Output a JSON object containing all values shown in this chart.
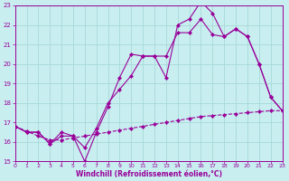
{
  "xlabel": "Windchill (Refroidissement éolien,°C)",
  "bg_color": "#c8eef0",
  "line_color": "#990099",
  "grid_color": "#a8d8d8",
  "xmin": 0,
  "xmax": 23,
  "ymin": 15,
  "ymax": 23,
  "x_ticks": [
    0,
    1,
    2,
    3,
    4,
    5,
    6,
    7,
    8,
    9,
    10,
    11,
    12,
    13,
    14,
    15,
    16,
    17,
    18,
    19,
    20,
    21,
    22,
    23
  ],
  "y_ticks": [
    15,
    16,
    17,
    18,
    19,
    20,
    21,
    22,
    23
  ],
  "line1_x": [
    0,
    1,
    2,
    3,
    4,
    5,
    6,
    7,
    8,
    9,
    10,
    11,
    12,
    13,
    14,
    15,
    16,
    17,
    18,
    19,
    20,
    21,
    22,
    23
  ],
  "line1_y": [
    16.8,
    16.5,
    16.5,
    15.9,
    16.5,
    16.3,
    15.0,
    16.5,
    17.8,
    19.3,
    20.5,
    20.4,
    20.4,
    19.3,
    22.0,
    22.3,
    23.2,
    22.6,
    21.4,
    21.8,
    21.4,
    20.0,
    18.3,
    17.6
  ],
  "line2_x": [
    0,
    1,
    2,
    3,
    4,
    5,
    6,
    7,
    8,
    9,
    10,
    11,
    12,
    13,
    14,
    15,
    16,
    17,
    18,
    19,
    20,
    21,
    22,
    23
  ],
  "line2_y": [
    16.8,
    16.5,
    16.5,
    15.9,
    16.3,
    16.3,
    15.7,
    16.7,
    18.0,
    18.7,
    19.4,
    20.4,
    20.4,
    20.4,
    21.6,
    21.6,
    22.3,
    21.5,
    21.4,
    21.8,
    21.4,
    20.0,
    18.3,
    17.6
  ],
  "line3_x": [
    0,
    1,
    2,
    3,
    4,
    5,
    6,
    7,
    8,
    9,
    10,
    11,
    12,
    13,
    14,
    15,
    16,
    17,
    18,
    19,
    20,
    21,
    22,
    23
  ],
  "line3_y": [
    16.8,
    16.55,
    16.3,
    16.1,
    16.1,
    16.2,
    16.3,
    16.4,
    16.5,
    16.6,
    16.7,
    16.8,
    16.9,
    17.0,
    17.1,
    17.2,
    17.3,
    17.35,
    17.4,
    17.45,
    17.5,
    17.55,
    17.6,
    17.6
  ]
}
